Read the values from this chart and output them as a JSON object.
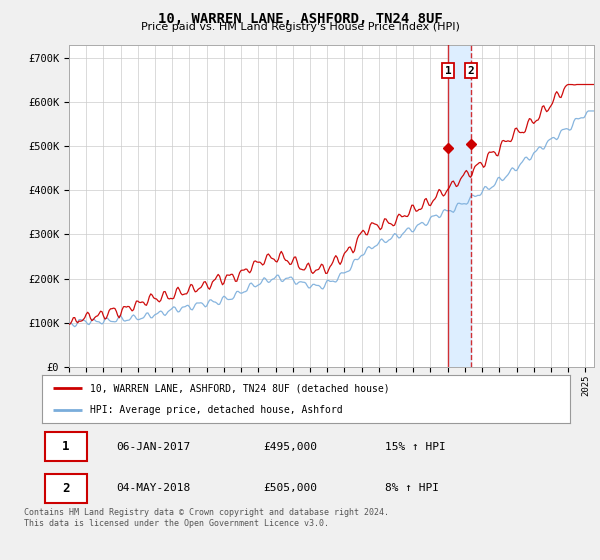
{
  "title": "10, WARREN LANE, ASHFORD, TN24 8UF",
  "subtitle": "Price paid vs. HM Land Registry's House Price Index (HPI)",
  "ylabel_ticks": [
    "£0",
    "£100K",
    "£200K",
    "£300K",
    "£400K",
    "£500K",
    "£600K",
    "£700K"
  ],
  "ylim": [
    0,
    730000
  ],
  "xlim_start": 1995.0,
  "xlim_end": 2025.5,
  "sale1_x": 2017.02,
  "sale1_y": 495000,
  "sale2_x": 2018.34,
  "sale2_y": 505000,
  "sale1_date": "06-JAN-2017",
  "sale1_price": "£495,000",
  "sale1_hpi": "15% ↑ HPI",
  "sale2_date": "04-MAY-2018",
  "sale2_price": "£505,000",
  "sale2_hpi": "8% ↑ HPI",
  "line1_color": "#cc0000",
  "line2_color": "#7aaddb",
  "shade_color": "#ddeeff",
  "background_color": "#f0f0f0",
  "plot_bg_color": "#ffffff",
  "legend1_text": "10, WARREN LANE, ASHFORD, TN24 8UF (detached house)",
  "legend2_text": "HPI: Average price, detached house, Ashford",
  "footer": "Contains HM Land Registry data © Crown copyright and database right 2024.\nThis data is licensed under the Open Government Licence v3.0."
}
